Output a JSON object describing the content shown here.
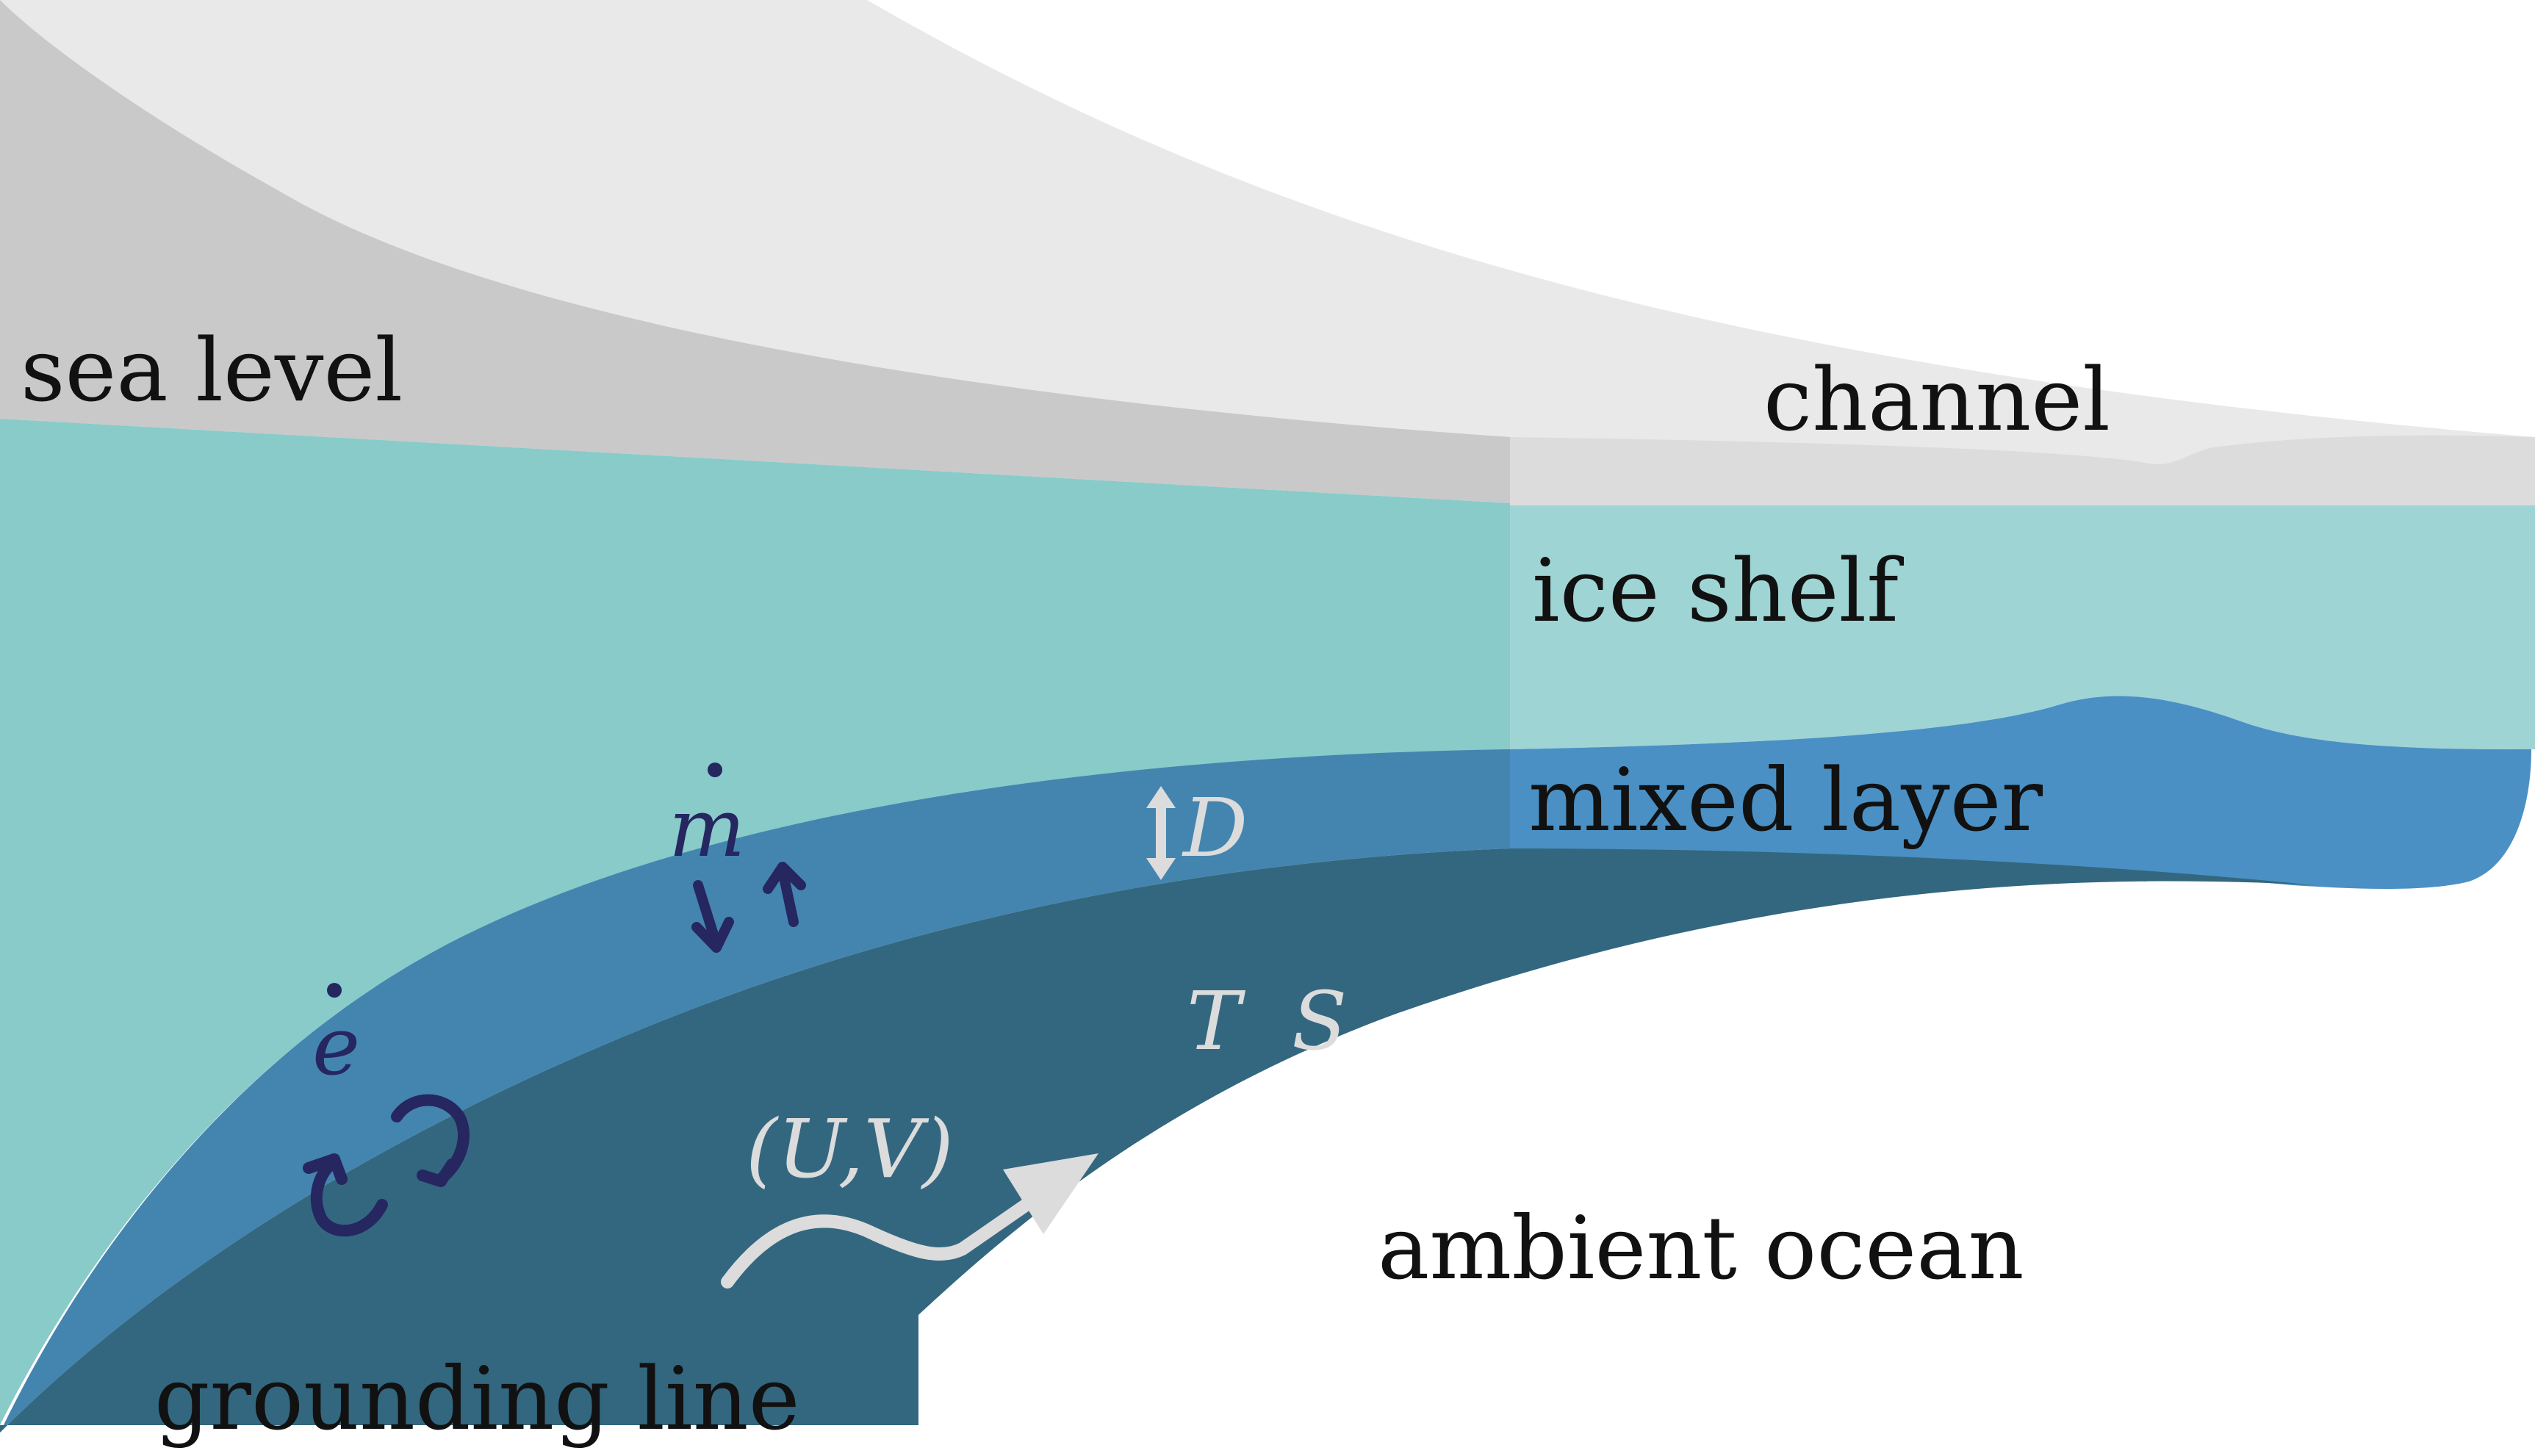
{
  "labels": {
    "sea_level": "sea level",
    "channel": "channel",
    "ice_shelf": "ice shelf",
    "mixed_layer": "mixed layer",
    "ambient_ocean": "ambient ocean",
    "grounding_line": "grounding line"
  },
  "symbols": {
    "melt_rate": "m",
    "entrainment_rate": "e",
    "thickness": "D",
    "temperature": "T",
    "salinity": "S",
    "velocity": "(U,V)"
  },
  "colors": {
    "ice_surface": "#e9e9e9",
    "ice_grey": "#c9c9c9",
    "channel_ice": "#dcdcdc",
    "ocean_light": "#88cbc9",
    "ice_shelf_region": "#9fd4d4",
    "mixed_layer": "#4485b0",
    "mixed_layer_right": "#4a90c4",
    "deep_layer": "#33677f",
    "symbol_dark": "#262660",
    "symbol_light": "#dcdcdc",
    "text": "#111111"
  }
}
